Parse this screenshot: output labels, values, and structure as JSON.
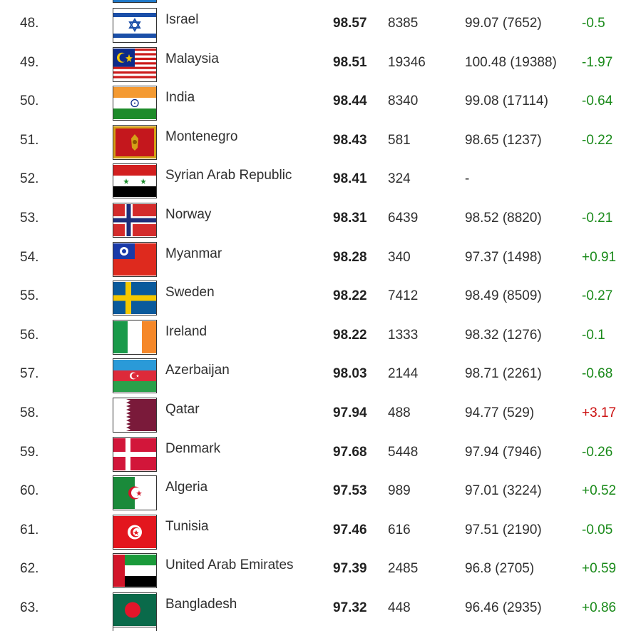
{
  "rows": [
    {
      "rank": "48.",
      "country": "Israel",
      "score": "98.57",
      "count": "8385",
      "previous": "99.07 (7652)",
      "change": "-0.5",
      "change_color": "#1a8a1a",
      "flag_icon": "israel-flag-icon"
    },
    {
      "rank": "49.",
      "country": "Malaysia",
      "score": "98.51",
      "count": "19346",
      "previous": "100.48 (19388)",
      "change": "-1.97",
      "change_color": "#1a8a1a",
      "flag_icon": "malaysia-flag-icon"
    },
    {
      "rank": "50.",
      "country": "India",
      "score": "98.44",
      "count": "8340",
      "previous": "99.08 (17114)",
      "change": "-0.64",
      "change_color": "#1a8a1a",
      "flag_icon": "india-flag-icon"
    },
    {
      "rank": "51.",
      "country": "Montenegro",
      "score": "98.43",
      "count": "581",
      "previous": "98.65 (1237)",
      "change": "-0.22",
      "change_color": "#1a8a1a",
      "flag_icon": "montenegro-flag-icon"
    },
    {
      "rank": "52.",
      "country": "Syrian Arab Republic",
      "score": "98.41",
      "count": "324",
      "previous": "-",
      "change": "",
      "change_color": "#1a8a1a",
      "flag_icon": "syria-flag-icon"
    },
    {
      "rank": "53.",
      "country": "Norway",
      "score": "98.31",
      "count": "6439",
      "previous": "98.52 (8820)",
      "change": "-0.21",
      "change_color": "#1a8a1a",
      "flag_icon": "norway-flag-icon"
    },
    {
      "rank": "54.",
      "country": "Myanmar",
      "score": "98.28",
      "count": "340",
      "previous": "97.37 (1498)",
      "change": "+0.91",
      "change_color": "#1a8a1a",
      "flag_icon": "myanmar-flag-icon"
    },
    {
      "rank": "55.",
      "country": "Sweden",
      "score": "98.22",
      "count": "7412",
      "previous": "98.49 (8509)",
      "change": "-0.27",
      "change_color": "#1a8a1a",
      "flag_icon": "sweden-flag-icon"
    },
    {
      "rank": "56.",
      "country": "Ireland",
      "score": "98.22",
      "count": "1333",
      "previous": "98.32 (1276)",
      "change": "-0.1",
      "change_color": "#1a8a1a",
      "flag_icon": "ireland-flag-icon"
    },
    {
      "rank": "57.",
      "country": "Azerbaijan",
      "score": "98.03",
      "count": "2144",
      "previous": "98.71 (2261)",
      "change": "-0.68",
      "change_color": "#1a8a1a",
      "flag_icon": "azerbaijan-flag-icon"
    },
    {
      "rank": "58.",
      "country": "Qatar",
      "score": "97.94",
      "count": "488",
      "previous": "94.77 (529)",
      "change": "+3.17",
      "change_color": "#cc1111",
      "flag_icon": "qatar-flag-icon"
    },
    {
      "rank": "59.",
      "country": "Denmark",
      "score": "97.68",
      "count": "5448",
      "previous": "97.94 (7946)",
      "change": "-0.26",
      "change_color": "#1a8a1a",
      "flag_icon": "denmark-flag-icon"
    },
    {
      "rank": "60.",
      "country": "Algeria",
      "score": "97.53",
      "count": "989",
      "previous": "97.01 (3224)",
      "change": "+0.52",
      "change_color": "#1a8a1a",
      "flag_icon": "algeria-flag-icon"
    },
    {
      "rank": "61.",
      "country": "Tunisia",
      "score": "97.46",
      "count": "616",
      "previous": "97.51 (2190)",
      "change": "-0.05",
      "change_color": "#1a8a1a",
      "flag_icon": "tunisia-flag-icon"
    },
    {
      "rank": "62.",
      "country": "United Arab Emirates",
      "score": "97.39",
      "count": "2485",
      "previous": "96.8 (2705)",
      "change": "+0.59",
      "change_color": "#1a8a1a",
      "flag_icon": "uae-flag-icon"
    },
    {
      "rank": "63.",
      "country": "Bangladesh",
      "score": "97.32",
      "count": "448",
      "previous": "96.46 (2935)",
      "change": "+0.86",
      "change_color": "#1a8a1a",
      "flag_icon": "bangladesh-flag-icon"
    }
  ]
}
